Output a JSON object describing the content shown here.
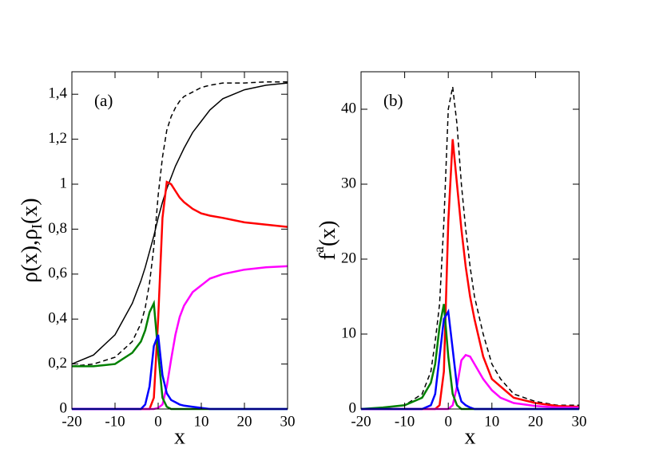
{
  "chart_data": [
    {
      "type": "line",
      "annotation": "(a)",
      "xlabel": "x",
      "ylabel": [
        "ρ(x),ρ",
        "I",
        "(x)"
      ],
      "ylabel_script": "sub",
      "xlim": [
        -20,
        30
      ],
      "ylim": [
        0,
        1.5
      ],
      "xticks": [
        -20,
        -10,
        0,
        10,
        20,
        30
      ],
      "yticks": [
        0,
        {
          "value": 0.2,
          "label": "0,2"
        },
        {
          "value": 0.4,
          "label": "0,4"
        },
        {
          "value": 0.6,
          "label": "0,6"
        },
        {
          "value": 0.8,
          "label": "0,8"
        },
        1,
        {
          "value": 1.2,
          "label": "1,2"
        },
        {
          "value": 1.4,
          "label": "1,4"
        }
      ],
      "x": [
        -20,
        -15,
        -10,
        -6,
        -4,
        -3,
        -2,
        -1,
        0,
        1,
        2,
        3,
        4,
        5,
        6,
        8,
        10,
        12,
        15,
        20,
        25,
        30
      ],
      "series": [
        {
          "color": "#000000",
          "dash": true,
          "values": [
            0.19,
            0.2,
            0.23,
            0.3,
            0.38,
            0.45,
            0.56,
            0.72,
            0.95,
            1.12,
            1.24,
            1.3,
            1.34,
            1.37,
            1.39,
            1.41,
            1.43,
            1.44,
            1.45,
            1.45,
            1.455,
            1.455
          ]
        },
        {
          "color": "#000000",
          "dash": false,
          "values": [
            0.2,
            0.24,
            0.33,
            0.47,
            0.57,
            0.63,
            0.7,
            0.77,
            0.85,
            0.92,
            0.98,
            1.03,
            1.08,
            1.12,
            1.16,
            1.23,
            1.28,
            1.33,
            1.38,
            1.42,
            1.44,
            1.45
          ]
        },
        {
          "color": "#ff0000",
          "dash": false,
          "values": [
            0,
            0,
            0,
            0,
            0,
            0,
            0,
            0.05,
            0.4,
            0.85,
            1.01,
            1.0,
            0.97,
            0.94,
            0.92,
            0.89,
            0.87,
            0.86,
            0.85,
            0.83,
            0.82,
            0.81
          ]
        },
        {
          "color": "#ff00ff",
          "dash": false,
          "values": [
            0,
            0,
            0,
            0,
            0,
            0,
            0,
            0,
            0.005,
            0.02,
            0.1,
            0.22,
            0.33,
            0.41,
            0.46,
            0.52,
            0.55,
            0.58,
            0.6,
            0.62,
            0.63,
            0.635
          ]
        },
        {
          "color": "#008000",
          "dash": false,
          "values": [
            0.19,
            0.19,
            0.2,
            0.25,
            0.3,
            0.35,
            0.43,
            0.47,
            0.25,
            0.05,
            0.01,
            0,
            0,
            0,
            0,
            0,
            0,
            0,
            0,
            0,
            0,
            0
          ]
        },
        {
          "color": "#0000ff",
          "dash": false,
          "values": [
            0,
            0,
            0,
            0,
            0,
            0.02,
            0.1,
            0.28,
            0.33,
            0.15,
            0.07,
            0.04,
            0.03,
            0.02,
            0.015,
            0.01,
            0.005,
            0,
            0,
            0,
            0,
            0
          ]
        }
      ]
    },
    {
      "type": "line",
      "annotation": "(b)",
      "xlabel": "x",
      "ylabel": [
        "f",
        "a",
        "(x)"
      ],
      "ylabel_script": "super",
      "xlim": [
        -20,
        30
      ],
      "ylim": [
        0,
        45
      ],
      "xticks": [
        -20,
        -10,
        0,
        10,
        20,
        30
      ],
      "yticks": [
        0,
        10,
        20,
        30,
        40
      ],
      "x": [
        -20,
        -15,
        -10,
        -6,
        -4,
        -3,
        -2,
        -1,
        0,
        1,
        2,
        3,
        4,
        5,
        6,
        8,
        10,
        12,
        15,
        20,
        25,
        30
      ],
      "series": [
        {
          "color": "#000000",
          "dash": true,
          "values": [
            0,
            0.2,
            0.5,
            2,
            5,
            9,
            14,
            25,
            40,
            43,
            38,
            30,
            24,
            19,
            15,
            10,
            6,
            4,
            2,
            1,
            0.5,
            0.5
          ]
        },
        {
          "color": "#ff0000",
          "dash": false,
          "values": [
            0,
            0,
            0,
            0,
            0,
            0,
            0.5,
            5,
            25,
            36,
            30,
            24,
            19,
            15,
            12,
            7,
            4,
            3,
            1.5,
            0.8,
            0.4,
            0.3
          ]
        },
        {
          "color": "#ff00ff",
          "dash": false,
          "values": [
            0,
            0,
            0,
            0,
            0,
            0,
            0,
            0,
            0,
            0.5,
            3,
            6.5,
            7.2,
            7,
            6,
            4,
            2.5,
            1.5,
            0.8,
            0.4,
            0.2,
            0.2
          ]
        },
        {
          "color": "#008000",
          "dash": false,
          "values": [
            0,
            0.2,
            0.5,
            1.5,
            3.5,
            6,
            11,
            14,
            7,
            2,
            0.5,
            0,
            0,
            0,
            0,
            0,
            0,
            0,
            0,
            0,
            0,
            0
          ]
        },
        {
          "color": "#0000ff",
          "dash": false,
          "values": [
            0,
            0,
            0,
            0,
            0.5,
            2,
            7,
            12,
            13,
            8,
            3,
            1,
            0.5,
            0.2,
            0,
            0,
            0,
            0,
            0,
            0,
            0,
            0
          ]
        }
      ]
    }
  ]
}
